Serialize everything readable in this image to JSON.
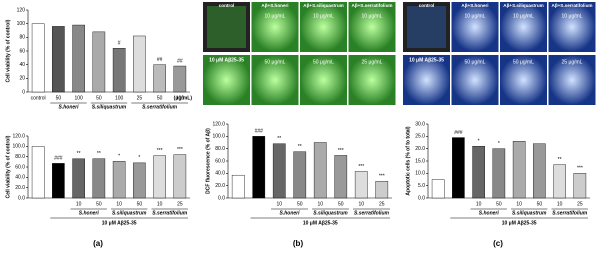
{
  "panel_labels": [
    "(a)",
    "(b)",
    "(c)"
  ],
  "micrographs": [
    {
      "color": "#3fd13a",
      "top_labels": [
        "control",
        "Aβ+S.honeri",
        "Aβ+S.siliquastrum",
        "Aβ+S.serratifolium"
      ],
      "top_doses": [
        "10 μg/mL",
        "10 μg/mL",
        "10 μg/mL"
      ],
      "bottom_label": "10 μM Aβ25-35",
      "bottom_doses": [
        "50 μg/mL",
        "50 μg/mL",
        "25 μg/mL"
      ]
    },
    {
      "color": "#2f6fe0",
      "top_labels": [
        "control",
        "Aβ+S.honeri",
        "Aβ+S.siliquastrum",
        "Aβ+S.serratifolium"
      ],
      "top_doses": [
        "10 μg/mL",
        "10 μg/mL",
        "10 μg/mL"
      ],
      "bottom_label": "10 μM Aβ25-35",
      "bottom_doses": [
        "50 μg/mL",
        "50 μg/mL",
        "25 μg/mL"
      ]
    }
  ],
  "chart_data": [
    {
      "type": "bar",
      "ylabel": "Cell viability (% of control)",
      "ylim": [
        0,
        120
      ],
      "yticks": [
        0,
        20,
        40,
        60,
        80,
        100,
        120
      ],
      "categories": [
        "control",
        "50",
        "100",
        "50",
        "100",
        "25",
        "50",
        "100"
      ],
      "unit": "(μg/mL)",
      "groups": [
        "S.honeri",
        "S.siliquastrum",
        "S.serratifolium"
      ],
      "values": [
        100,
        96,
        98,
        88,
        64,
        82,
        40,
        38
      ],
      "annotations": [
        null,
        null,
        null,
        null,
        "#",
        null,
        "##",
        "##"
      ],
      "colors": [
        "#ffffff",
        "#555555",
        "#888888",
        "#aaaaaa",
        "#777777",
        "#dddddd",
        "#bbbbbb",
        "#999999"
      ]
    },
    {
      "type": "bar",
      "ylabel": "Cell viability (% of control)",
      "ylim": [
        0,
        120
      ],
      "yticks": [
        {
          "value": 0,
          "label": "0.0"
        },
        {
          "value": 20,
          "label": "20.0"
        },
        {
          "value": 40,
          "label": "40.0"
        },
        {
          "value": 60,
          "label": "60.0"
        },
        {
          "value": 80,
          "label": "80.0"
        },
        {
          "value": 100,
          "label": "100.0"
        },
        {
          "value": 120,
          "label": "120.0"
        }
      ],
      "categories": [
        null,
        null,
        "10",
        "50",
        "10",
        "50",
        "10",
        "25"
      ],
      "treatment": "10 μM Aβ25-35",
      "groups": [
        "S.honeri",
        "S.siliquastrum",
        "S.serratifolium"
      ],
      "values": [
        100,
        67,
        76,
        76,
        71,
        68,
        82,
        84
      ],
      "annotations": [
        null,
        "###",
        "**",
        "**",
        "*",
        "*",
        "***",
        "***"
      ],
      "colors": [
        "#ffffff",
        "#000000",
        "#666666",
        "#888888",
        "#aaaaaa",
        "#999999",
        "#dddddd",
        "#cccccc"
      ]
    },
    {
      "type": "bar",
      "ylabel": "DCF fluorescence (% of Aβ)",
      "ylim": [
        0,
        120
      ],
      "yticks": [
        {
          "value": 0,
          "label": "0.0"
        },
        {
          "value": 20,
          "label": "20.0"
        },
        {
          "value": 40,
          "label": "40.0"
        },
        {
          "value": 60,
          "label": "60.0"
        },
        {
          "value": 80,
          "label": "80.0"
        },
        {
          "value": 100,
          "label": "100.0"
        },
        {
          "value": 120,
          "label": "120.0"
        }
      ],
      "categories": [
        null,
        null,
        "10",
        "50",
        "10",
        "50",
        "10",
        "25"
      ],
      "treatment": "10 μM Aβ25-35",
      "groups": [
        "S.honeri",
        "S.siliquastrum",
        "S.serratifolium"
      ],
      "values": [
        37,
        100,
        88,
        75,
        90,
        69,
        43,
        27
      ],
      "annotations": [
        null,
        "###",
        "**",
        "**",
        null,
        "***",
        "***",
        "***"
      ],
      "colors": [
        "#ffffff",
        "#000000",
        "#666666",
        "#888888",
        "#aaaaaa",
        "#999999",
        "#dddddd",
        "#cccccc"
      ]
    },
    {
      "type": "bar",
      "ylabel": "Apoptotic cells (% of to total)",
      "ylim": [
        0,
        30
      ],
      "yticks": [
        {
          "value": 0,
          "label": "0.0"
        },
        {
          "value": 5,
          "label": "5.0"
        },
        {
          "value": 10,
          "label": "10.0"
        },
        {
          "value": 15,
          "label": "15.0"
        },
        {
          "value": 20,
          "label": "20.0"
        },
        {
          "value": 25,
          "label": "25.0"
        },
        {
          "value": 30,
          "label": "30.0"
        }
      ],
      "categories": [
        null,
        null,
        "10",
        "50",
        "10",
        "50",
        "10",
        "25"
      ],
      "treatment": "10 μM Aβ25-35",
      "groups": [
        "S.honeri",
        "S.siliquastrum",
        "S.serratifolium"
      ],
      "values": [
        7.5,
        24.5,
        21,
        20,
        23,
        22,
        13.5,
        10
      ],
      "annotations": [
        null,
        "###",
        "*",
        "*",
        null,
        null,
        "**",
        "***"
      ],
      "colors": [
        "#ffffff",
        "#000000",
        "#666666",
        "#888888",
        "#aaaaaa",
        "#999999",
        "#dddddd",
        "#cccccc"
      ]
    }
  ]
}
